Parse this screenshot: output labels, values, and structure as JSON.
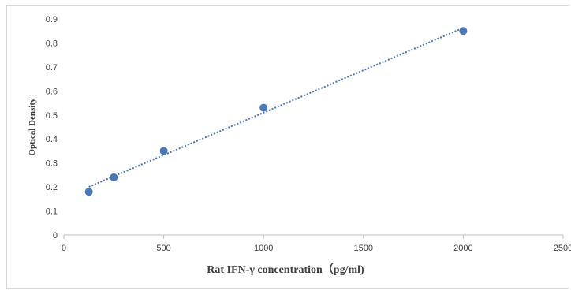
{
  "chart_data": {
    "type": "scatter",
    "xlabel": "Rat IFN-γ concentration（pg/ml)",
    "ylabel": "Optical Density",
    "xlim": [
      0,
      2500
    ],
    "ylim": [
      0,
      0.9
    ],
    "x_ticks": [
      "0",
      "500",
      "1000",
      "1500",
      "2000",
      "2500"
    ],
    "y_ticks": [
      "0",
      "0.1",
      "0.2",
      "0.3",
      "0.4",
      "0.5",
      "0.6",
      "0.7",
      "0.8",
      "0.9"
    ],
    "series": [
      {
        "points": [
          {
            "x": 125,
            "y": 0.18
          },
          {
            "x": 250,
            "y": 0.24
          },
          {
            "x": 500,
            "y": 0.35
          },
          {
            "x": 1000,
            "y": 0.53
          },
          {
            "x": 2000,
            "y": 0.85
          }
        ]
      }
    ],
    "trendline": {
      "type": "linear",
      "style": "dotted",
      "x_start": 125,
      "x_end": 2000
    },
    "grid": false,
    "colors": {
      "marker": "#4a78b5",
      "trendline": "#4a78b5",
      "axis": "#bfbfbf"
    }
  }
}
